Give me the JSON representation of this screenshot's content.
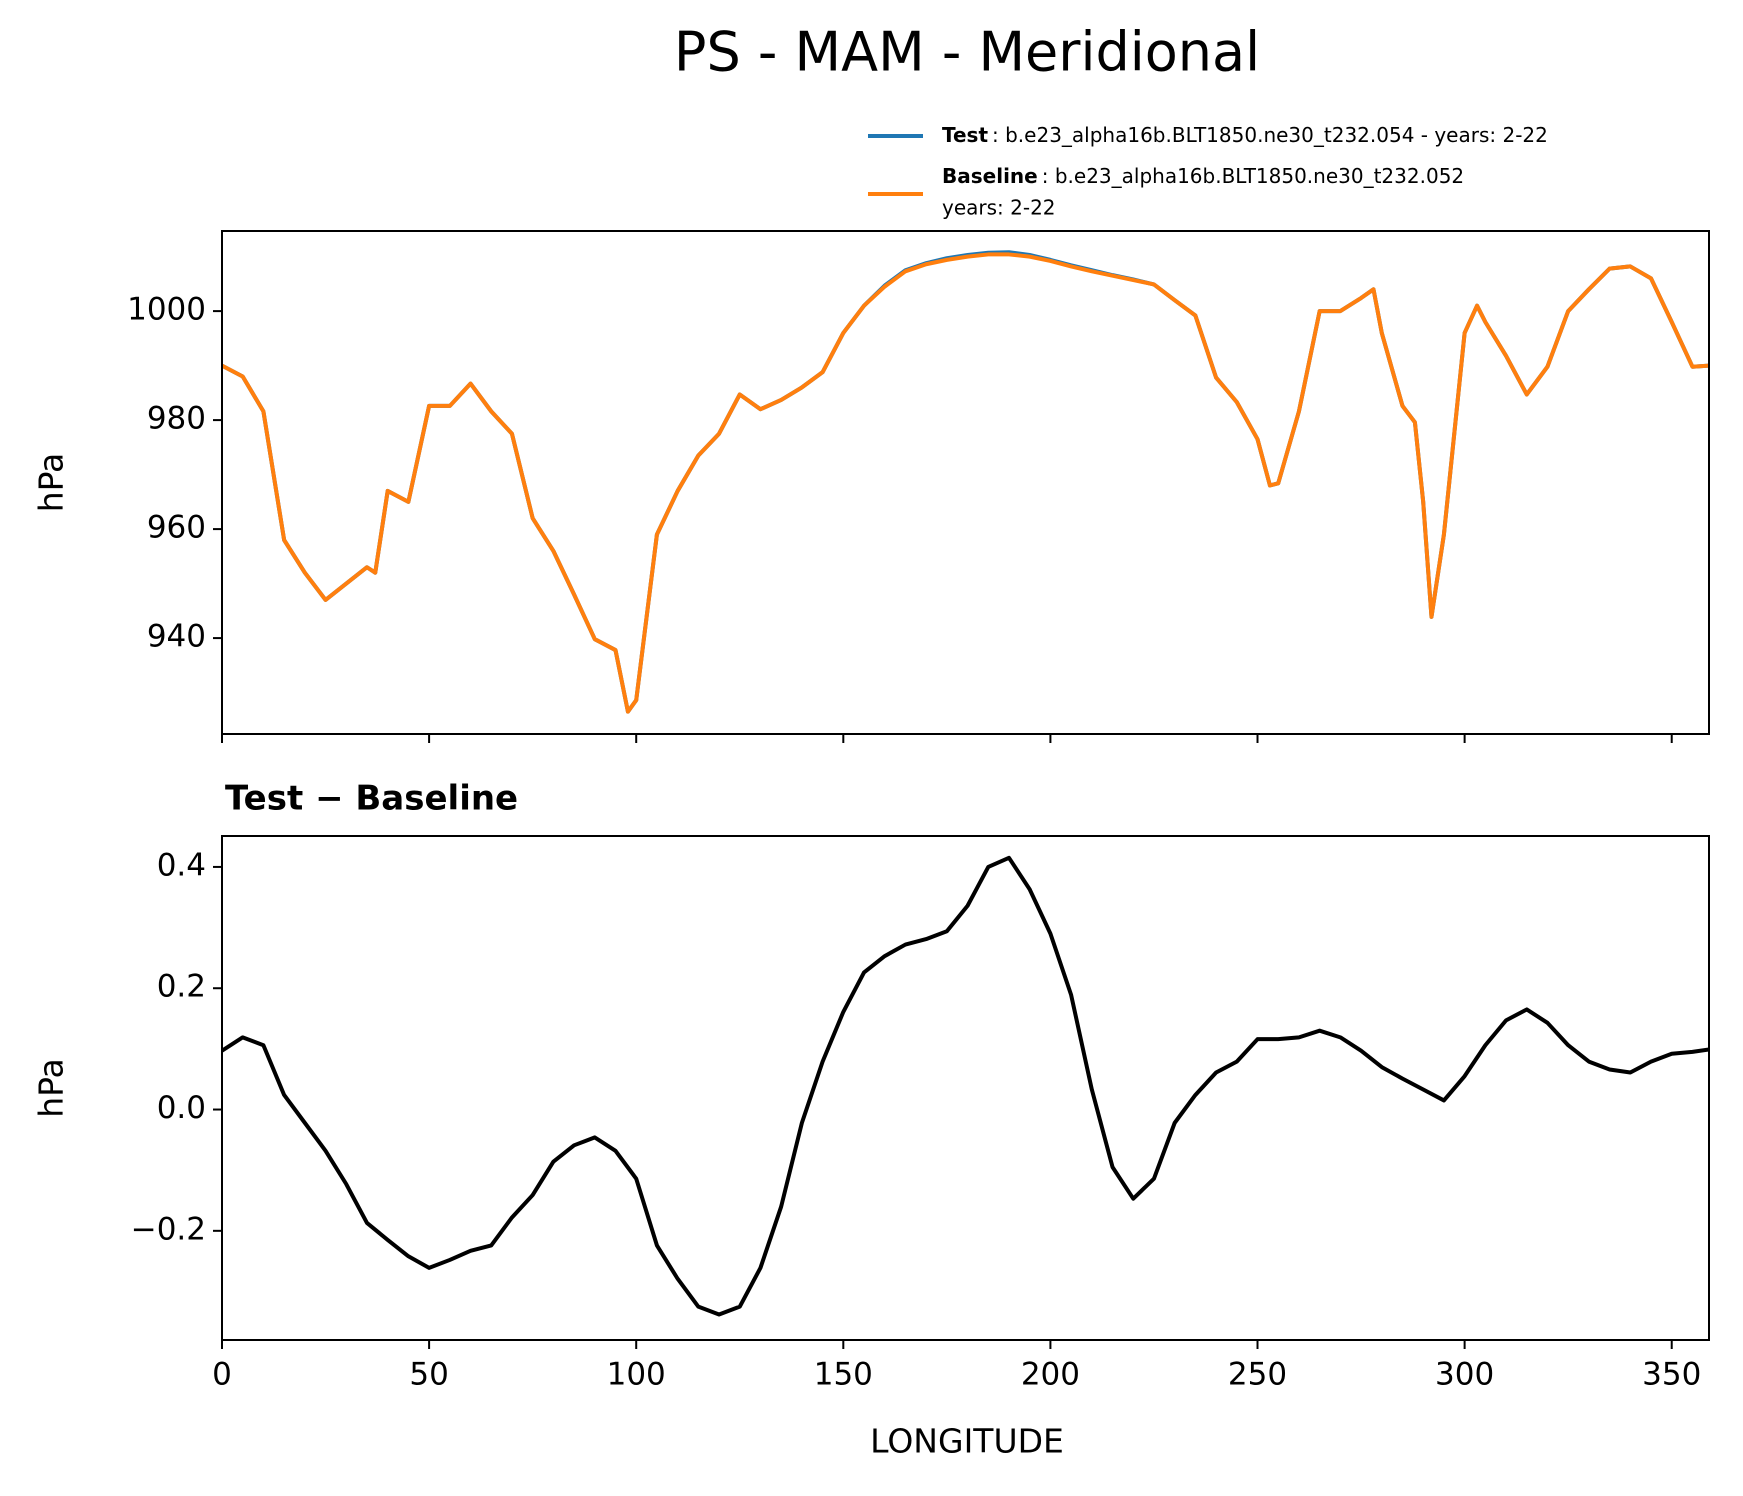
{
  "chart_data": [
    {
      "type": "line",
      "title": "PS - MAM - Meridional",
      "ylabel": "hPa",
      "x": [
        0,
        5,
        10,
        15,
        20,
        25,
        30,
        35,
        37,
        40,
        45,
        50,
        55,
        60,
        65,
        70,
        75,
        80,
        85,
        90,
        95,
        98,
        100,
        105,
        110,
        115,
        120,
        125,
        130,
        135,
        140,
        145,
        150,
        155,
        160,
        165,
        170,
        175,
        180,
        185,
        190,
        195,
        200,
        205,
        210,
        215,
        220,
        225,
        230,
        235,
        240,
        245,
        250,
        253,
        255,
        260,
        265,
        270,
        275,
        278,
        280,
        285,
        288,
        290,
        292,
        295,
        300,
        303,
        305,
        310,
        315,
        320,
        325,
        330,
        335,
        340,
        345,
        350,
        355,
        359
      ],
      "series": [
        {
          "name": "Test",
          "label": ": b.e23_alpha16b.BLT1850.ne30_t232.054 - years: 2-22",
          "color": "#1f77b4",
          "values": [
            990,
            988,
            981.6,
            958,
            952,
            947,
            950,
            953,
            952,
            967,
            965,
            982.6,
            982.6,
            986.7,
            981.6,
            977.5,
            962,
            956,
            948,
            939.8,
            937.8,
            926.5,
            928.6,
            959,
            967,
            973.5,
            977.5,
            984.7,
            982,
            983.7,
            986,
            988.8,
            996,
            1001,
            1004.7,
            1007.5,
            1008.8,
            1009.7,
            1010.3,
            1010.7,
            1010.8,
            1010.3,
            1009.4,
            1008.4,
            1007.5,
            1006.6,
            1005.8,
            1004.9,
            1002,
            999.2,
            987.8,
            983.3,
            976.5,
            968,
            968.4,
            981.6,
            1000,
            1000,
            1002.4,
            1004,
            996,
            982.6,
            979.6,
            965,
            943.9,
            959,
            996,
            1001,
            998,
            991.8,
            984.7,
            989.8,
            1000,
            1004,
            1007.8,
            1008.2,
            1006,
            998,
            989.8,
            990
          ]
        },
        {
          "name": "Baseline",
          "label_lines": [
            ": b.e23_alpha16b.BLT1850.ne30_t232.052",
            "years: 2-22"
          ],
          "color": "#ff7f0e",
          "values": [
            990,
            988,
            981.6,
            958,
            952,
            947,
            950,
            953,
            952,
            967,
            965,
            982.6,
            982.6,
            986.7,
            981.6,
            977.5,
            962,
            956,
            948,
            939.8,
            937.8,
            926.5,
            928.6,
            959,
            967,
            973.5,
            977.5,
            984.7,
            982,
            983.7,
            986,
            988.8,
            996,
            1001,
            1004.5,
            1007.3,
            1008.6,
            1009.4,
            1010,
            1010.4,
            1010.4,
            1010,
            1009.2,
            1008.2,
            1007.3,
            1006.5,
            1005.7,
            1004.9,
            1002,
            999.2,
            987.8,
            983.3,
            976.5,
            968,
            968.4,
            981.6,
            1000,
            1000,
            1002.4,
            1004,
            996,
            982.6,
            979.6,
            965,
            943.9,
            959,
            996,
            1001,
            998,
            991.8,
            984.7,
            989.8,
            1000,
            1004,
            1007.8,
            1008.2,
            1006,
            998,
            989.8,
            990
          ]
        }
      ],
      "xlim": [
        0,
        359
      ],
      "ylim": [
        922.4,
        1014.7
      ],
      "yticks": [
        940,
        960,
        980,
        1000
      ]
    },
    {
      "type": "line",
      "title": "Test − Baseline",
      "xlabel": "LONGITUDE",
      "ylabel": "hPa",
      "x": [
        0,
        5,
        10,
        15,
        20,
        25,
        30,
        35,
        40,
        45,
        50,
        55,
        60,
        65,
        70,
        75,
        80,
        85,
        90,
        95,
        100,
        105,
        110,
        115,
        120,
        125,
        130,
        135,
        140,
        145,
        150,
        155,
        160,
        165,
        170,
        175,
        180,
        185,
        190,
        195,
        200,
        205,
        210,
        215,
        220,
        225,
        230,
        235,
        240,
        245,
        250,
        255,
        260,
        265,
        270,
        275,
        280,
        285,
        290,
        295,
        300,
        305,
        310,
        315,
        320,
        325,
        330,
        335,
        340,
        345,
        350,
        355,
        359
      ],
      "series": [
        {
          "color": "#000000",
          "values": [
            0.097,
            0.119,
            0.106,
            0.024,
            -0.022,
            -0.068,
            -0.123,
            -0.187,
            -0.215,
            -0.242,
            -0.261,
            -0.248,
            -0.233,
            -0.224,
            -0.178,
            -0.141,
            -0.086,
            -0.059,
            -0.046,
            -0.068,
            -0.114,
            -0.224,
            -0.279,
            -0.325,
            -0.338,
            -0.325,
            -0.261,
            -0.16,
            -0.022,
            0.079,
            0.161,
            0.226,
            0.253,
            0.272,
            0.281,
            0.294,
            0.336,
            0.4,
            0.415,
            0.363,
            0.29,
            0.189,
            0.033,
            -0.095,
            -0.147,
            -0.114,
            -0.022,
            0.024,
            0.061,
            0.079,
            0.116,
            0.116,
            0.119,
            0.13,
            0.119,
            0.097,
            0.07,
            0.051,
            0.033,
            0.015,
            0.055,
            0.106,
            0.147,
            0.165,
            0.143,
            0.106,
            0.079,
            0.066,
            0.061,
            0.079,
            0.092,
            0.095,
            0.099
          ]
        }
      ],
      "xlim": [
        0,
        359
      ],
      "ylim": [
        -0.38,
        0.451
      ],
      "xticks": [
        0,
        50,
        100,
        150,
        200,
        250,
        300,
        350
      ],
      "yticks": [
        {
          "value": -0.2,
          "label": "−0.2"
        },
        {
          "value": 0,
          "label": "0.0"
        },
        0.2,
        0.4
      ]
    }
  ]
}
